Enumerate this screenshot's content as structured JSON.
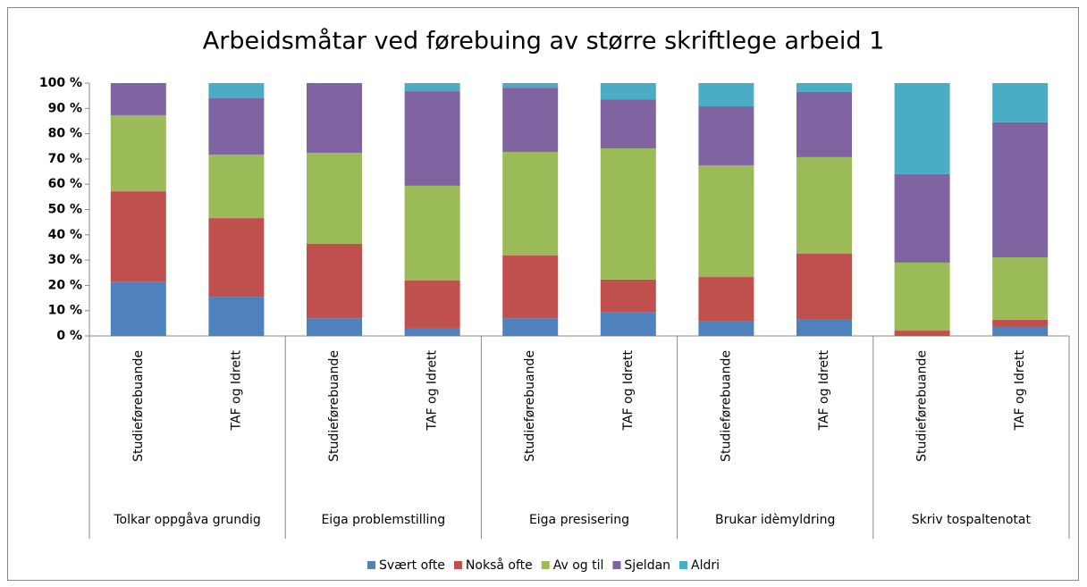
{
  "chart_data": {
    "type": "stacked_bar",
    "title": "Arbeidsmåtar ved førebuing av større skriftlege arbeid 1",
    "groups": [
      "Tolkar  oppgåva grundig",
      "Eiga problemstilling",
      "Eiga presisering",
      "Brukar idèmyldring",
      "Skriv tospaltenotat"
    ],
    "categories": [
      "Studieførebuande",
      "TAF og Idrett",
      "Studieførebuande",
      "TAF og Idrett",
      "Studieførebuande",
      "TAF og Idrett",
      "Studieførebuande",
      "TAF og Idrett",
      "Studieførebuande",
      "TAF og Idrett"
    ],
    "series": [
      {
        "name": "Svært ofte",
        "color": "#4f81bd",
        "values": [
          21.5,
          15.5,
          7,
          3.2,
          7,
          9.5,
          5.7,
          6.4,
          0,
          3.5
        ]
      },
      {
        "name": "Nokså ofte",
        "color": "#c0504d",
        "values": [
          35.7,
          31.1,
          29.4,
          18.7,
          24.8,
          12.8,
          17.6,
          26.1,
          2.1,
          2.9
        ]
      },
      {
        "name": "Av og til",
        "color": "#9bbb59",
        "values": [
          30.1,
          25.1,
          36,
          37.5,
          41,
          51.9,
          44.2,
          38.2,
          26.9,
          24.7
        ]
      },
      {
        "name": "Sjeldan",
        "color": "#8064a2",
        "values": [
          12.7,
          22.3,
          27.6,
          37.4,
          25.4,
          19.4,
          23.3,
          25.8,
          35,
          53.4
        ]
      },
      {
        "name": "Aldri",
        "color": "#4bacc6",
        "values": [
          0,
          6,
          0,
          3.2,
          1.8,
          6.4,
          9.2,
          3.5,
          36,
          15.5
        ]
      }
    ],
    "ylim": [
      0,
      100
    ],
    "yticks": [
      {
        "value": 0,
        "label": "0 %"
      },
      {
        "value": 10,
        "label": "10 %"
      },
      {
        "value": 20,
        "label": "20 %"
      },
      {
        "value": 30,
        "label": "30 %"
      },
      {
        "value": 40,
        "label": "40 %"
      },
      {
        "value": 50,
        "label": "50 %"
      },
      {
        "value": 60,
        "label": "60 %"
      },
      {
        "value": 70,
        "label": "70 %"
      },
      {
        "value": 80,
        "label": "80 %"
      },
      {
        "value": 90,
        "label": "90 %"
      },
      {
        "value": 100,
        "label": "100 %"
      }
    ],
    "legend": "bottom"
  }
}
